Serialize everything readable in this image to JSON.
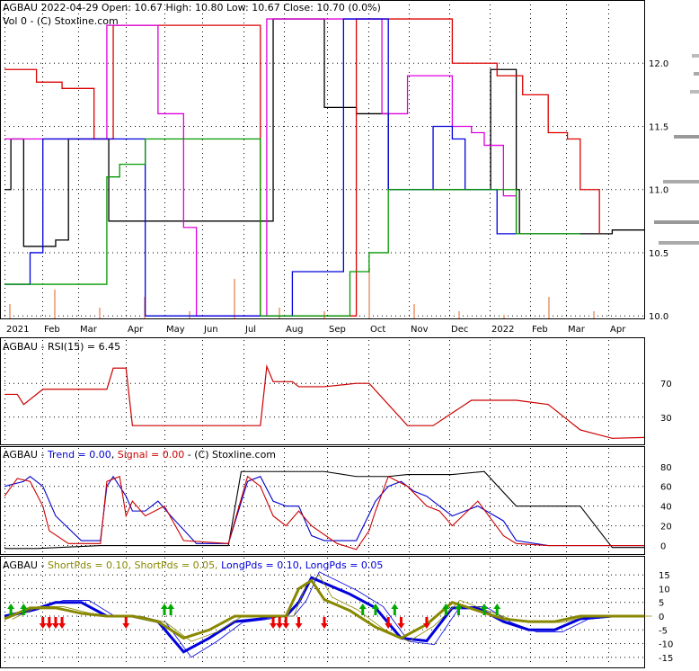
{
  "header": {
    "symbol": "AGBAU",
    "date": "2022-04-29",
    "open_label": "Open:",
    "open": "10.67",
    "high_label": "High:",
    "high": "10.80",
    "low_label": "Low:",
    "low": "10.67",
    "close_label": "Close:",
    "close": "10.70",
    "change": "(0.0%)",
    "vol_label": "Vol 0",
    "copyright": "(C) Stoxline.com"
  },
  "colors": {
    "price": "#000000",
    "ma_red": "#dd0000",
    "ma_magenta": "#dd00dd",
    "ma_blue": "#0000dd",
    "ma_green": "#009900",
    "volume": "#f0b090",
    "rsi": "#cc0000",
    "trend": "#0000cc",
    "signal": "#cc0000",
    "short": "#888800",
    "long": "#0000dd",
    "up_arrow": "#00aa00",
    "down_arrow": "#ee0000"
  },
  "chart_data": [
    {
      "type": "line",
      "panel": "price",
      "y_ticks": [
        "12.0",
        "11.5",
        "11.0",
        "10.5",
        "10.0"
      ],
      "y_tick_values": [
        12.0,
        11.5,
        11.0,
        10.5,
        10.0
      ],
      "ylim": [
        9.98,
        12.5
      ],
      "x_ticks": [
        "2021",
        "Feb",
        "Mar",
        "Apr",
        "May",
        "Jun",
        "Jul",
        "Aug",
        "Sep",
        "Oct",
        "Nov",
        "Dec",
        "2022",
        "Feb",
        "Mar",
        "Apr"
      ],
      "series": [
        {
          "color_key": "price",
          "x": [
            0,
            1,
            3,
            8,
            10,
            11,
            12,
            14,
            15,
            16,
            16.3,
            19,
            25,
            31,
            35,
            42,
            50,
            55,
            60,
            63,
            67,
            70,
            75,
            76,
            77,
            80,
            80.5,
            86,
            90,
            95,
            98,
            100
          ],
          "y": [
            11.0,
            11.4,
            10.55,
            10.6,
            11.4,
            11.4,
            11.4,
            11.4,
            11.4,
            11.4,
            10.75,
            10.75,
            10.75,
            10.75,
            10.75,
            12.35,
            11.65,
            11.6,
            11.0,
            11.0,
            11.0,
            11.0,
            11.0,
            11.95,
            11.95,
            11.0,
            10.65,
            10.65,
            10.65,
            10.68,
            10.68,
            10.68
          ]
        },
        {
          "color_key": "ma_red",
          "x": [
            0,
            4,
            5,
            9,
            14,
            17,
            22,
            30,
            33,
            40,
            50,
            55,
            58,
            62,
            65,
            70,
            72,
            77,
            81,
            85,
            88,
            90,
            93
          ],
          "y": [
            11.95,
            11.95,
            11.85,
            11.8,
            11.4,
            12.3,
            12.3,
            12.3,
            12.3,
            10.0,
            10.0,
            12.35,
            12.35,
            12.35,
            12.35,
            12.0,
            12.0,
            11.9,
            11.75,
            11.45,
            11.4,
            11.0,
            10.65
          ]
        },
        {
          "color_key": "ma_magenta",
          "x": [
            0,
            5,
            10,
            13,
            16,
            17,
            20,
            24,
            28,
            30,
            40,
            41,
            55,
            56,
            59,
            62,
            63,
            64,
            66,
            70,
            73,
            75,
            78,
            80
          ],
          "y": [
            11.4,
            11.4,
            11.4,
            11.4,
            12.3,
            12.3,
            12.3,
            11.6,
            10.7,
            10.0,
            10.0,
            12.35,
            12.35,
            12.35,
            11.6,
            11.6,
            11.9,
            11.9,
            11.9,
            11.5,
            11.45,
            11.35,
            10.95,
            10.65
          ]
        },
        {
          "color_key": "ma_blue",
          "x": [
            0,
            2,
            4,
            6,
            10,
            15,
            16,
            20,
            22,
            25,
            30,
            40,
            45,
            50,
            53,
            55,
            57,
            60,
            63,
            67,
            70,
            72,
            75,
            77,
            80
          ],
          "y": [
            10.25,
            10.25,
            10.5,
            11.4,
            11.4,
            11.4,
            11.4,
            11.4,
            10.0,
            10.0,
            10.0,
            10.0,
            10.35,
            10.35,
            12.35,
            12.35,
            12.35,
            11.0,
            11.0,
            11.5,
            11.4,
            11.0,
            11.0,
            10.65,
            10.65
          ]
        },
        {
          "color_key": "ma_green",
          "x": [
            0,
            5,
            12,
            16,
            18,
            22,
            30,
            40,
            50,
            54,
            57,
            60,
            67,
            70,
            75,
            80,
            90
          ],
          "y": [
            10.25,
            10.25,
            10.25,
            11.1,
            11.2,
            11.4,
            11.4,
            10.0,
            10.0,
            10.35,
            10.5,
            11.0,
            11.0,
            11.0,
            11.0,
            10.65,
            10.65
          ]
        }
      ],
      "volume_bars": [
        0.2,
        0.4,
        0.15,
        0.3,
        0.1,
        0.55,
        0.15,
        0.1,
        0.7,
        0.2,
        0.1,
        0.05,
        0.3,
        0.1
      ]
    },
    {
      "type": "line",
      "panel": "rsi",
      "label": "AGBAU - RSI(15) = 6.45",
      "y_ticks": [
        "70",
        "30"
      ],
      "y_tick_values": [
        70,
        30
      ],
      "ylim": [
        0,
        100
      ],
      "series": [
        {
          "color_key": "rsi",
          "x": [
            0,
            2,
            3,
            6,
            16,
            17,
            19,
            20,
            40,
            41,
            42,
            45,
            46,
            50,
            55,
            56,
            57,
            63,
            65,
            67,
            73,
            80,
            85,
            90,
            95,
            100
          ],
          "y": [
            57,
            57,
            45,
            63,
            63,
            88,
            88,
            20,
            20,
            90,
            72,
            72,
            66,
            66,
            70,
            70,
            70,
            20,
            20,
            20,
            50,
            50,
            45,
            15,
            5,
            6
          ]
        }
      ]
    },
    {
      "type": "line",
      "panel": "trend",
      "label_prefix": "AGBAU - ",
      "trend_label": "Trend = 0.00",
      "signal_label": "Signal = 0.00",
      "suffix": "- (C) Stoxline.com",
      "y_ticks": [
        "80",
        "60",
        "40",
        "20",
        "0"
      ],
      "y_tick_values": [
        80,
        60,
        40,
        20,
        0
      ],
      "ylim": [
        -5,
        88
      ],
      "series": [
        {
          "color_key": "price",
          "x": [
            0,
            5,
            15,
            20,
            35,
            37,
            40,
            45,
            50,
            55,
            60,
            63,
            70,
            75,
            80,
            82,
            85,
            90,
            95,
            100
          ],
          "y": [
            -3,
            -3,
            0,
            0,
            0,
            75,
            75,
            75,
            75,
            70,
            70,
            72,
            72,
            75,
            40,
            40,
            40,
            40,
            -2,
            -2
          ]
        },
        {
          "color_key": "trend",
          "x": [
            0,
            3,
            4,
            6,
            8,
            12,
            15,
            16,
            17,
            19,
            20,
            22,
            24,
            26,
            30,
            35,
            38,
            40,
            42,
            44,
            46,
            48,
            50,
            55,
            58,
            60,
            62,
            64,
            66,
            68,
            70,
            74,
            78,
            80,
            85,
            100
          ],
          "y": [
            60,
            65,
            70,
            60,
            30,
            5,
            5,
            60,
            70,
            50,
            35,
            35,
            45,
            30,
            2,
            2,
            65,
            70,
            45,
            40,
            40,
            10,
            5,
            5,
            45,
            60,
            65,
            55,
            50,
            40,
            30,
            40,
            25,
            5,
            0,
            0
          ]
        },
        {
          "color_key": "signal",
          "x": [
            0,
            2,
            4,
            6,
            7,
            10,
            15,
            16,
            18,
            19,
            20,
            22,
            25,
            28,
            35,
            38,
            40,
            42,
            44,
            46,
            48,
            52,
            55,
            57,
            58,
            60,
            63,
            66,
            68,
            70,
            74,
            78,
            80,
            85,
            100
          ],
          "y": [
            50,
            68,
            65,
            40,
            15,
            2,
            2,
            65,
            70,
            30,
            45,
            30,
            40,
            5,
            2,
            70,
            60,
            30,
            20,
            35,
            20,
            2,
            -4,
            15,
            35,
            70,
            60,
            40,
            35,
            20,
            45,
            10,
            2,
            0,
            0
          ]
        }
      ]
    },
    {
      "type": "line",
      "panel": "periods",
      "label_prefix": "AGBAU - ",
      "short1_label": "ShortPds = 0.10,",
      "short2_label": "ShortPds = 0.05,",
      "long1_label": "LongPds = 0.10,",
      "long2_label": "LongPds = 0.05",
      "y_ticks": [
        "15",
        "10",
        "5",
        "0",
        "-5",
        "-10",
        "-15"
      ],
      "y_tick_values": [
        15,
        10,
        5,
        0,
        -5,
        -10,
        -15
      ],
      "ylim": [
        -18,
        18
      ],
      "series": [
        {
          "color_key": "long",
          "x": [
            0,
            4,
            8,
            12,
            16,
            20,
            24,
            28,
            32,
            36,
            40,
            42,
            44,
            46,
            48,
            50,
            54,
            58,
            62,
            66,
            70,
            74,
            78,
            82,
            86,
            90,
            95
          ],
          "y": [
            0,
            2,
            5,
            5,
            0,
            0,
            -2,
            -13,
            -8,
            -2,
            -1,
            0,
            0,
            5,
            14,
            12,
            8,
            3,
            -8,
            -9,
            3,
            3,
            -2,
            -5,
            -5,
            -1,
            0
          ]
        },
        {
          "color_key": "short",
          "x": [
            0,
            4,
            8,
            12,
            16,
            20,
            24,
            28,
            32,
            36,
            40,
            42,
            44,
            46,
            48,
            50,
            54,
            58,
            62,
            66,
            70,
            74,
            78,
            82,
            86,
            90,
            95,
            100
          ],
          "y": [
            -1,
            3,
            3,
            1,
            0,
            0,
            -2,
            -8,
            -5,
            0,
            0,
            0,
            0,
            10,
            13,
            6,
            2,
            -4,
            -8,
            -3,
            5,
            2,
            -1,
            -2,
            -2,
            0,
            0,
            0
          ]
        }
      ],
      "up_arrows_x": [
        1,
        3,
        25,
        26,
        56,
        58,
        61,
        69,
        71,
        75,
        77
      ],
      "down_arrows_x": [
        6,
        7,
        8,
        9,
        19,
        42,
        43,
        44,
        46,
        50,
        60,
        62,
        66
      ]
    }
  ]
}
